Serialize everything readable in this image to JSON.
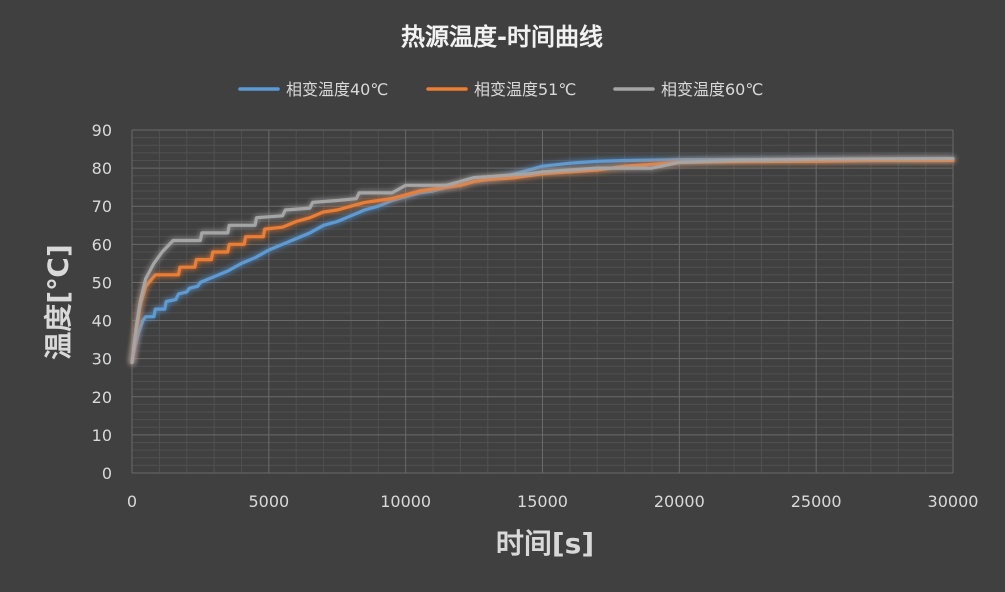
{
  "chart_data": {
    "type": "line",
    "title": "热源温度-时间曲线",
    "xlabel": "时间[s]",
    "ylabel": "温度[℃]",
    "xlim": [
      0,
      30000
    ],
    "ylim": [
      0,
      90
    ],
    "xticks": [
      0,
      5000,
      10000,
      15000,
      20000,
      25000,
      30000
    ],
    "yticks": [
      0,
      10,
      20,
      30,
      40,
      50,
      60,
      70,
      80,
      90
    ],
    "grid": true,
    "legend_position": "top",
    "series": [
      {
        "name": "相变温度40℃",
        "color": "#5b9bd5",
        "points": [
          [
            0,
            29
          ],
          [
            100,
            33
          ],
          [
            250,
            37
          ],
          [
            400,
            40
          ],
          [
            500,
            41
          ],
          [
            800,
            41
          ],
          [
            850,
            43
          ],
          [
            1200,
            43
          ],
          [
            1250,
            45
          ],
          [
            1600,
            45.5
          ],
          [
            1700,
            47
          ],
          [
            2000,
            47.5
          ],
          [
            2100,
            48.5
          ],
          [
            2400,
            49
          ],
          [
            2500,
            50
          ],
          [
            3000,
            51.5
          ],
          [
            3500,
            53
          ],
          [
            4000,
            55
          ],
          [
            4500,
            56.5
          ],
          [
            5000,
            58.5
          ],
          [
            5500,
            60
          ],
          [
            6000,
            61.5
          ],
          [
            6500,
            63
          ],
          [
            7000,
            65
          ],
          [
            7500,
            66
          ],
          [
            8000,
            67.5
          ],
          [
            8500,
            69
          ],
          [
            9000,
            70
          ],
          [
            9500,
            71.5
          ],
          [
            10000,
            72.5
          ],
          [
            10500,
            73.5
          ],
          [
            11000,
            74
          ],
          [
            11500,
            75
          ],
          [
            12000,
            75.5
          ],
          [
            12500,
            76.5
          ],
          [
            13000,
            77
          ],
          [
            13500,
            77.5
          ],
          [
            14000,
            78.5
          ],
          [
            14500,
            79.5
          ],
          [
            15000,
            80.5
          ],
          [
            16000,
            81.3
          ],
          [
            17000,
            81.8
          ],
          [
            18000,
            82
          ],
          [
            20000,
            82.2
          ],
          [
            25000,
            82.3
          ],
          [
            30000,
            82.3
          ]
        ]
      },
      {
        "name": "相变温度51℃",
        "color": "#ed7d31",
        "points": [
          [
            0,
            29
          ],
          [
            150,
            37
          ],
          [
            300,
            44
          ],
          [
            500,
            49
          ],
          [
            850,
            52
          ],
          [
            1700,
            52
          ],
          [
            1750,
            54
          ],
          [
            2300,
            54
          ],
          [
            2350,
            56
          ],
          [
            2900,
            56
          ],
          [
            2950,
            58
          ],
          [
            3500,
            58
          ],
          [
            3550,
            60
          ],
          [
            4100,
            60
          ],
          [
            4150,
            62
          ],
          [
            4800,
            62
          ],
          [
            4850,
            64
          ],
          [
            5500,
            64.5
          ],
          [
            6000,
            66
          ],
          [
            6500,
            67
          ],
          [
            7000,
            68.5
          ],
          [
            7500,
            69
          ],
          [
            8000,
            70
          ],
          [
            8500,
            71
          ],
          [
            9000,
            71.5
          ],
          [
            9500,
            72
          ],
          [
            10000,
            73
          ],
          [
            10500,
            74
          ],
          [
            11000,
            74.5
          ],
          [
            11500,
            75
          ],
          [
            12000,
            75.5
          ],
          [
            12500,
            76.5
          ],
          [
            13000,
            77
          ],
          [
            14000,
            77.5
          ],
          [
            15000,
            78.5
          ],
          [
            16000,
            79
          ],
          [
            17000,
            79.5
          ],
          [
            18000,
            80.5
          ],
          [
            19000,
            81
          ],
          [
            20000,
            81.5
          ],
          [
            22000,
            81.7
          ],
          [
            25000,
            81.8
          ],
          [
            27000,
            82
          ],
          [
            30000,
            82
          ]
        ]
      },
      {
        "name": "相变温度60℃",
        "color": "#a5a5a5",
        "points": [
          [
            0,
            29
          ],
          [
            150,
            38
          ],
          [
            300,
            45
          ],
          [
            500,
            51
          ],
          [
            800,
            55
          ],
          [
            1100,
            58
          ],
          [
            1500,
            61
          ],
          [
            2500,
            61
          ],
          [
            2550,
            63
          ],
          [
            3500,
            63
          ],
          [
            3550,
            65
          ],
          [
            4500,
            65
          ],
          [
            4550,
            67
          ],
          [
            5500,
            67.5
          ],
          [
            5600,
            69
          ],
          [
            6500,
            69.5
          ],
          [
            6600,
            71
          ],
          [
            7500,
            71.5
          ],
          [
            8200,
            72
          ],
          [
            8300,
            73.5
          ],
          [
            9500,
            73.5
          ],
          [
            10000,
            75.5
          ],
          [
            11500,
            75.5
          ],
          [
            12000,
            76.5
          ],
          [
            12500,
            77.5
          ],
          [
            13500,
            78
          ],
          [
            14500,
            78.5
          ],
          [
            15000,
            79
          ],
          [
            16000,
            79.5
          ],
          [
            17000,
            80
          ],
          [
            18000,
            80
          ],
          [
            19000,
            80
          ],
          [
            20000,
            81.5
          ],
          [
            22000,
            82
          ],
          [
            25000,
            82.3
          ],
          [
            30000,
            82.5
          ]
        ]
      }
    ]
  }
}
